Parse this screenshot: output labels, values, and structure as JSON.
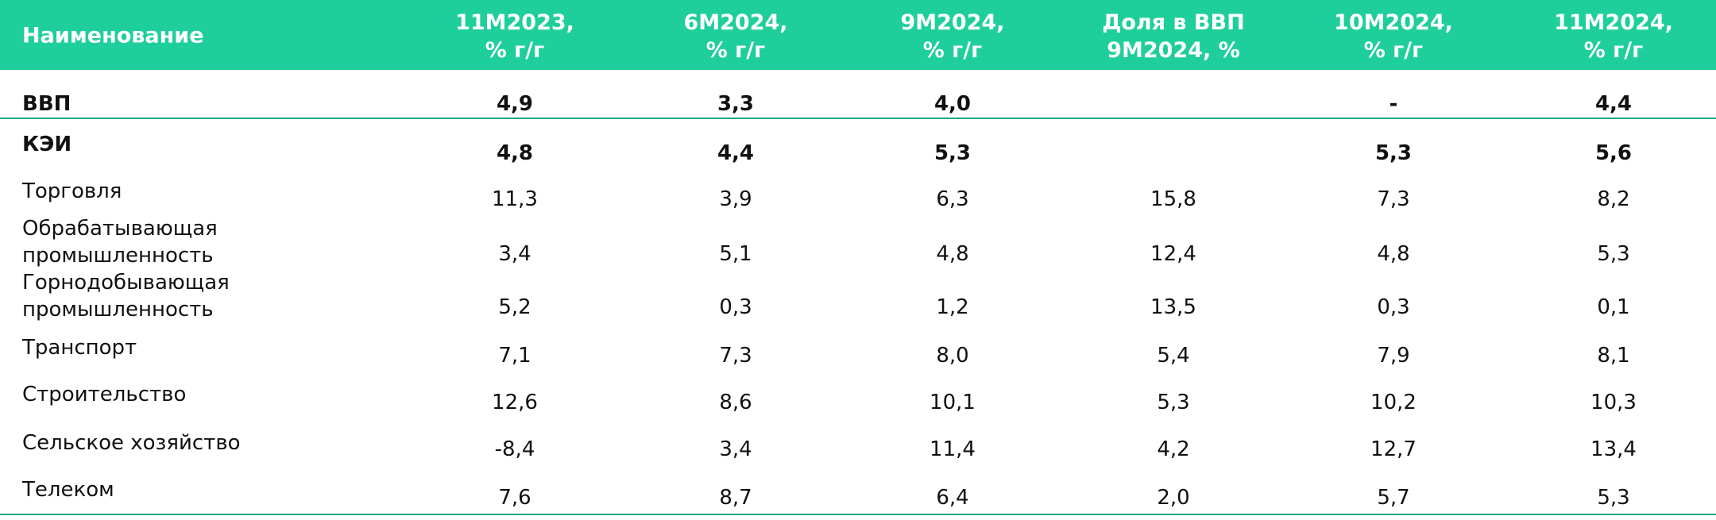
{
  "table": {
    "columns": [
      "Наименование",
      "11M2023,\n% г/г",
      "6M2024,\n% г/г",
      "9M2024,\n% г/г",
      "Доля в ВВП\n9M2024, %",
      "10M2024,\n% г/г",
      "11M2024,\n% г/г"
    ],
    "rows": [
      [
        "ВВП",
        "4,9",
        "3,3",
        "4,0",
        null,
        "-",
        "4,4"
      ],
      [
        "КЭИ",
        "4,8",
        "4,4",
        "5,3",
        null,
        "5,3",
        "5,6"
      ],
      [
        "Торговля",
        "11,3",
        "3,9",
        "6,3",
        "15,8",
        "7,3",
        "8,2"
      ],
      [
        "Обрабатывающая промышленность",
        "3,4",
        "5,1",
        "4,8",
        "12,4",
        "4,8",
        "5,3"
      ],
      [
        "Горнодобывающая промышленность",
        "5,2",
        "0,3",
        "1,2",
        "13,5",
        "0,3",
        "0,1"
      ],
      [
        "Транспорт",
        "7,1",
        "7,3",
        "8,0",
        "5,4",
        "7,9",
        "8,1"
      ],
      [
        "Строительство",
        "12,6",
        "8,6",
        "10,1",
        "5,3",
        "10,2",
        "10,3"
      ],
      [
        "Сельское хозяйство",
        "-8,4",
        "3,4",
        "11,4",
        "4,2",
        "12,7",
        "13,4"
      ],
      [
        "Телеком",
        "7,6",
        "8,7",
        "6,4",
        "2,0",
        "5,7",
        "5,3"
      ]
    ]
  }
}
